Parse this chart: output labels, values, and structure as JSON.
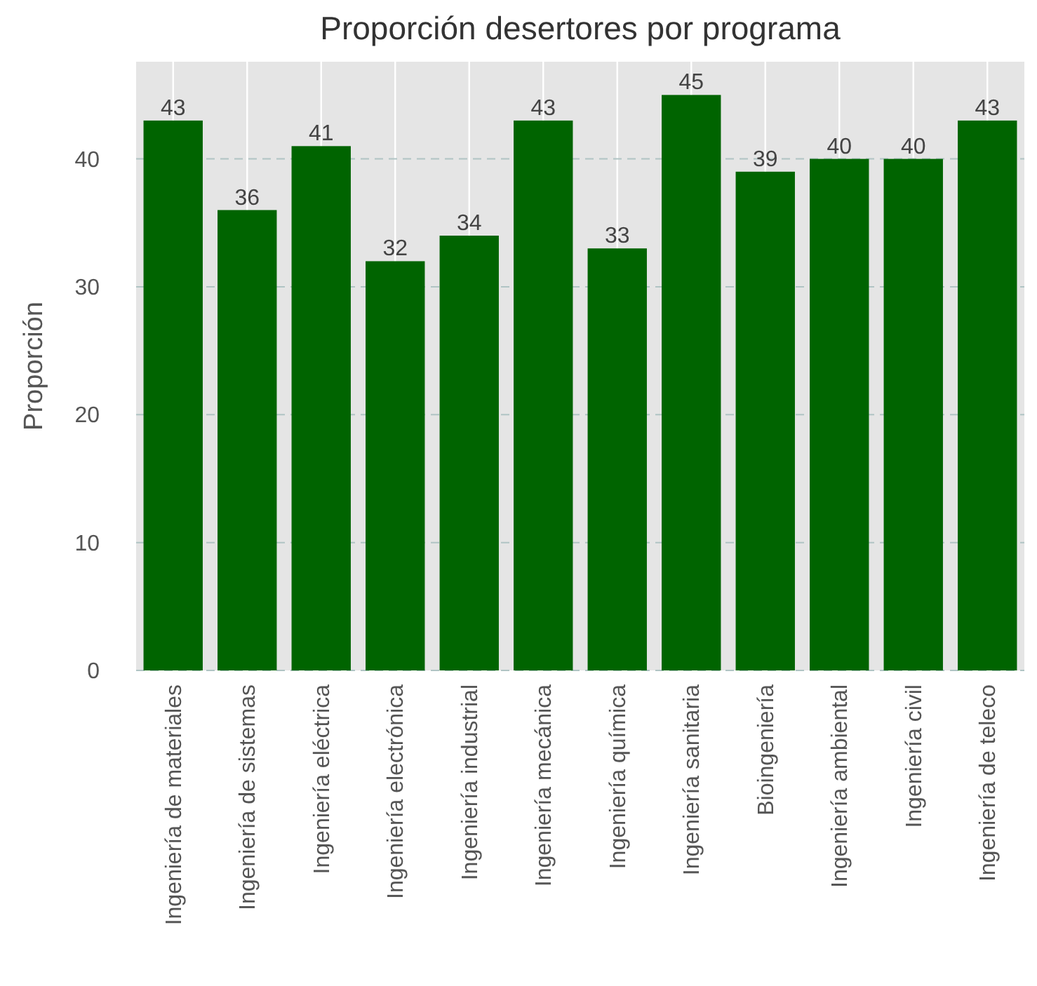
{
  "chart_data": {
    "type": "bar",
    "title": "Proporción desertores por programa",
    "ylabel": "Proporción",
    "categories": [
      "Ingeniería de materiales",
      "Ingeniería de sistemas",
      "Ingeniería eléctrica",
      "Ingeniería electrónica",
      "Ingeniería industrial",
      "Ingeniería mecánica",
      "Ingeniería química",
      "Ingeniería sanitaria",
      "Bioingeniería",
      "Ingeniería ambiental",
      "Ingeniería civil",
      "Ingeniería de teleco"
    ],
    "values": [
      43,
      36,
      41,
      32,
      34,
      43,
      33,
      45,
      39,
      40,
      40,
      43
    ],
    "data_labels": true,
    "color": "#006400",
    "ylim": [
      0,
      47.6
    ],
    "yticks": [
      0,
      10,
      20,
      30,
      40
    ],
    "grid": true
  }
}
